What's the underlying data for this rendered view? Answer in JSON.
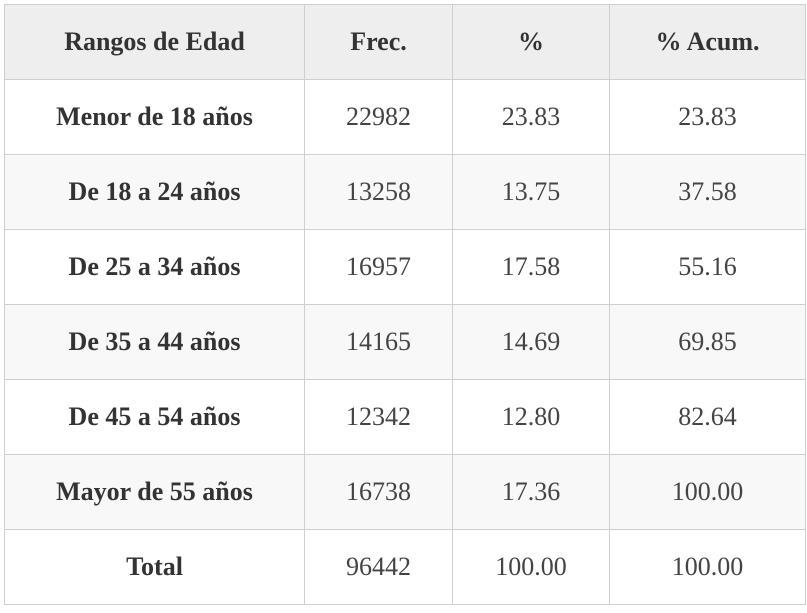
{
  "table": {
    "headers": [
      "Rangos de Edad",
      "Frec.",
      "%",
      "% Acum."
    ],
    "rows": [
      {
        "label": "Menor de 18 años",
        "frec": "22982",
        "pct": "23.83",
        "acum": "23.83"
      },
      {
        "label": "De 18 a 24 años",
        "frec": "13258",
        "pct": "13.75",
        "acum": "37.58"
      },
      {
        "label": "De 25 a 34 años",
        "frec": "16957",
        "pct": "17.58",
        "acum": "55.16"
      },
      {
        "label": "De 35 a 44 años",
        "frec": "14165",
        "pct": "14.69",
        "acum": "69.85"
      },
      {
        "label": "De 45 a 54 años",
        "frec": "12342",
        "pct": "12.80",
        "acum": "82.64"
      },
      {
        "label": "Mayor de 55 años",
        "frec": "16738",
        "pct": "17.36",
        "acum": "100.00"
      },
      {
        "label": "Total",
        "frec": "96442",
        "pct": "100.00",
        "acum": "100.00"
      }
    ]
  },
  "colors": {
    "header_bg": "#eeeeee",
    "row_alt_bg": "#f8f8f8",
    "border": "#cfcfcf",
    "text": "#333333"
  }
}
